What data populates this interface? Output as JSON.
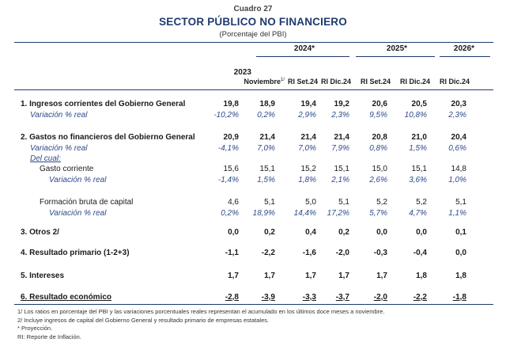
{
  "header": {
    "cuadro": "Cuadro 27",
    "title": "SECTOR PÚBLICO NO FINANCIERO",
    "subtitle": "(Porcentaje del PBI)"
  },
  "columns": {
    "group_2024": "2024*",
    "group_2025": "2025*",
    "group_2026": "2026*",
    "year_2023": "2023",
    "noviembre": "Noviembre",
    "noviembre_sup": "1/",
    "labels": [
      "RI Set.24",
      "RI Dic.24",
      "RI Set.24",
      "RI Dic.24",
      "RI Dic.24"
    ]
  },
  "rows": [
    {
      "label": "1. Ingresos corrientes del Gobierno General",
      "style": "bold",
      "values": [
        "19,8",
        "18,9",
        "19,4",
        "19,2",
        "20,6",
        "20,5",
        "20,3"
      ]
    },
    {
      "label": "Variación % real",
      "style": "var",
      "values": [
        "-10,2%",
        "0,2%",
        "2,9%",
        "2,3%",
        "9,5%",
        "10,8%",
        "2,3%"
      ]
    },
    {
      "label": "2. Gastos no financieros del Gobierno General",
      "style": "bold",
      "values": [
        "20,9",
        "21,4",
        "21,4",
        "21,4",
        "20,8",
        "21,0",
        "20,4"
      ]
    },
    {
      "label": "Variación % real",
      "style": "var",
      "values": [
        "-4,1%",
        "7,0%",
        "7,0%",
        "7,9%",
        "0,8%",
        "1,5%",
        "0,6%"
      ]
    },
    {
      "label": "Del cual:",
      "style": "delcual",
      "values": [
        "",
        "",
        "",
        "",
        "",
        "",
        ""
      ]
    },
    {
      "label": "Gasto corriente",
      "style": "sub",
      "values": [
        "15,6",
        "15,1",
        "15,2",
        "15,1",
        "15,0",
        "15,1",
        "14,8"
      ]
    },
    {
      "label": "Variación % real",
      "style": "subvar",
      "values": [
        "-1,4%",
        "1,5%",
        "1,8%",
        "2,1%",
        "2,6%",
        "3,6%",
        "1,0%"
      ]
    },
    {
      "label": "Formación bruta de capital",
      "style": "sub",
      "values": [
        "4,6",
        "5,1",
        "5,0",
        "5,1",
        "5,2",
        "5,2",
        "5,1"
      ]
    },
    {
      "label": "Variación % real",
      "style": "subvar",
      "values": [
        "0,2%",
        "18,9%",
        "14,4%",
        "17,2%",
        "5,7%",
        "4,7%",
        "1,1%"
      ]
    },
    {
      "label": "3. Otros 2/",
      "style": "bold",
      "values": [
        "0,0",
        "0,2",
        "0,4",
        "0,2",
        "0,0",
        "0,0",
        "0,1"
      ]
    },
    {
      "label": "4. Resultado primario (1-2+3)",
      "style": "bold",
      "values": [
        "-1,1",
        "-2,2",
        "-1,6",
        "-2,0",
        "-0,3",
        "-0,4",
        "0,0"
      ]
    },
    {
      "label": "5. Intereses",
      "style": "bold",
      "values": [
        "1,7",
        "1,7",
        "1,7",
        "1,7",
        "1,7",
        "1,8",
        "1,8"
      ]
    },
    {
      "label": "6. Resultado económico",
      "style": "boldul",
      "values": [
        "-2,8",
        "-3,9",
        "-3,3",
        "-3,7",
        "-2,0",
        "-2,2",
        "-1,8"
      ]
    }
  ],
  "notes": [
    "1/ Los ratios en porcentaje del PBI y las variaciones porcentuales reales representan el acumulado en los últimos doce meses a noviembre.",
    "2/ Incluye ingresos de capital del Gobierno General y resultado primario de empresas estatales.",
    "* Proyección.",
    "RI: Reporte de Inflación."
  ],
  "colors": {
    "accent": "#1f3a6e",
    "variation": "#2e4a8a"
  }
}
